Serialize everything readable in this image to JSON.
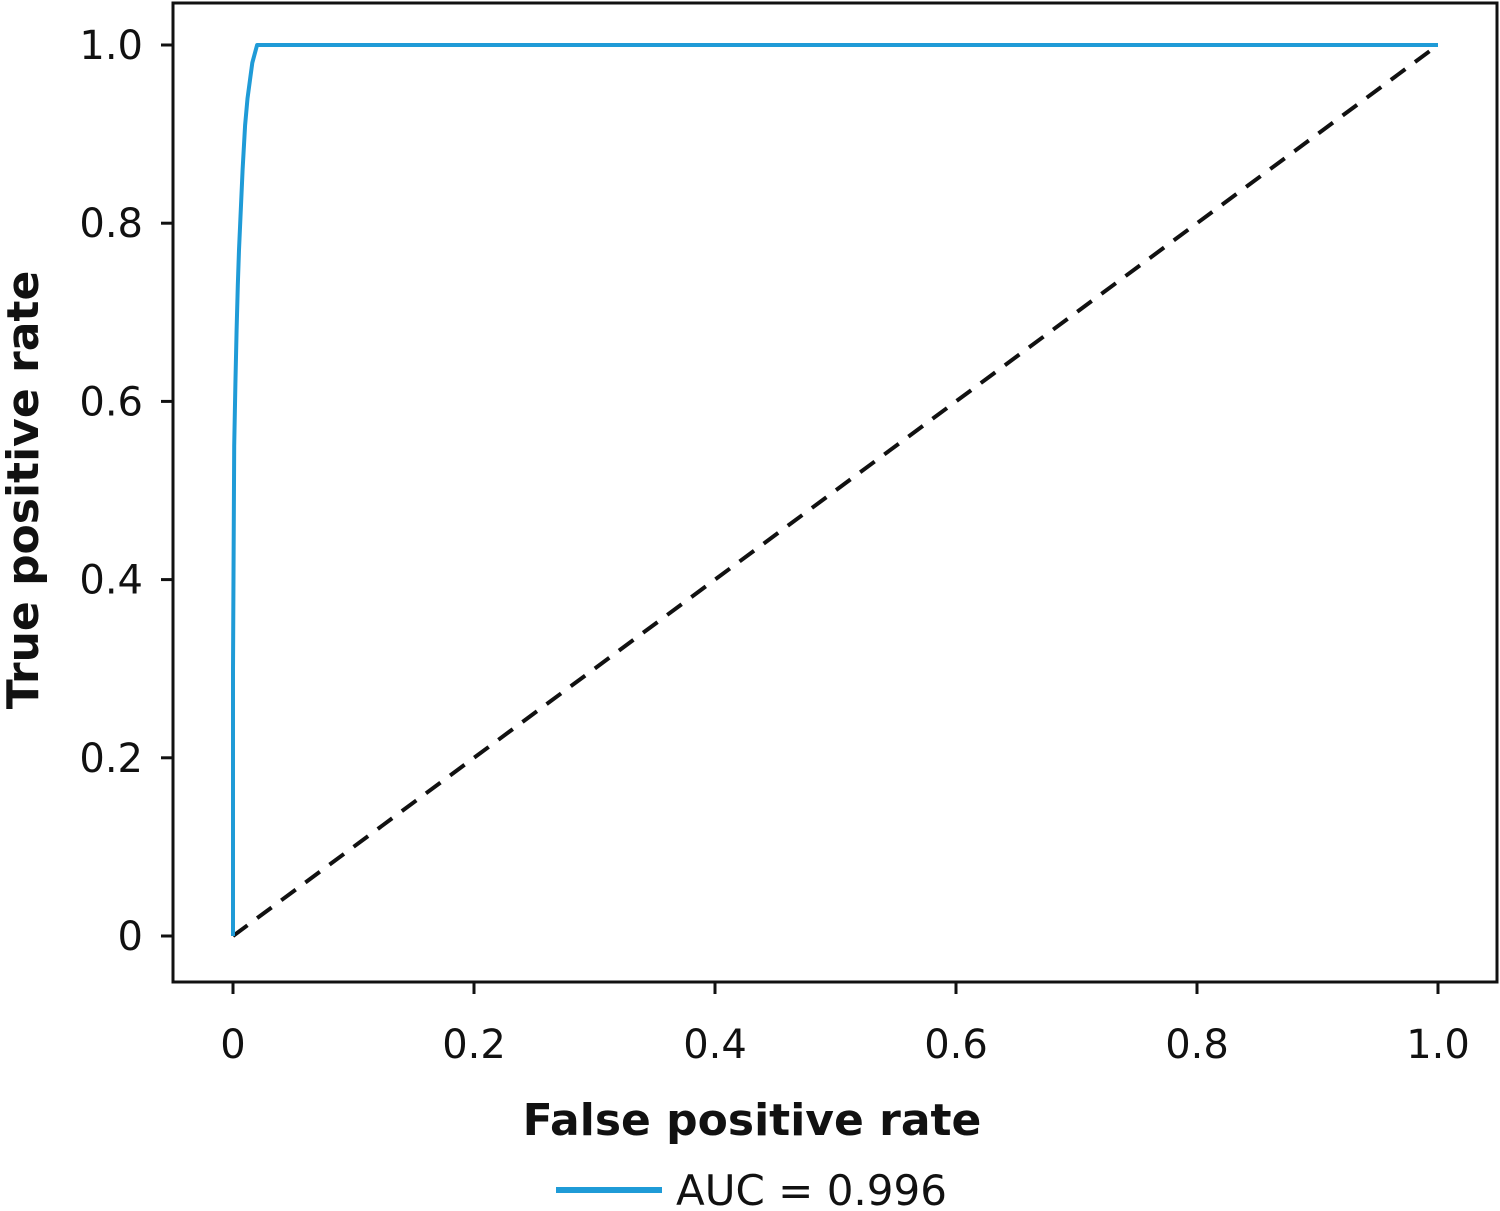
{
  "chart_data": {
    "type": "line",
    "title": "",
    "xlabel": "False positive rate",
    "ylabel": "True positive rate",
    "xlim": [
      -0.05,
      1.05
    ],
    "ylim": [
      -0.05,
      1.05
    ],
    "x_ticks": [
      {
        "value": 0,
        "label": "0"
      },
      {
        "value": 0.2,
        "label": "0.2"
      },
      {
        "value": 0.4,
        "label": "0.4"
      },
      {
        "value": 0.6,
        "label": "0.6"
      },
      {
        "value": 0.8,
        "label": "0.8"
      },
      {
        "value": 1.0,
        "label": "1.0"
      }
    ],
    "y_ticks": [
      {
        "value": 0,
        "label": "0"
      },
      {
        "value": 0.2,
        "label": "0.2"
      },
      {
        "value": 0.4,
        "label": "0.4"
      },
      {
        "value": 0.6,
        "label": "0.6"
      },
      {
        "value": 0.8,
        "label": "0.8"
      },
      {
        "value": 1.0,
        "label": "1.0"
      }
    ],
    "grid": false,
    "legend_position": "bottom-center",
    "series": [
      {
        "name": "AUC = 0.996",
        "color": "#1f9bd7",
        "style": "solid",
        "x": [
          0,
          0.0,
          0.001,
          0.002,
          0.003,
          0.004,
          0.005,
          0.006,
          0.008,
          0.01,
          0.012,
          0.014,
          0.016,
          0.018,
          0.02,
          1.0
        ],
        "y": [
          0,
          0.3,
          0.55,
          0.62,
          0.68,
          0.73,
          0.77,
          0.8,
          0.86,
          0.91,
          0.94,
          0.96,
          0.98,
          0.99,
          1.0,
          1.0
        ]
      },
      {
        "color": "#111111",
        "style": "dashed",
        "x": [
          0,
          1
        ],
        "y": [
          0,
          1
        ]
      }
    ]
  }
}
